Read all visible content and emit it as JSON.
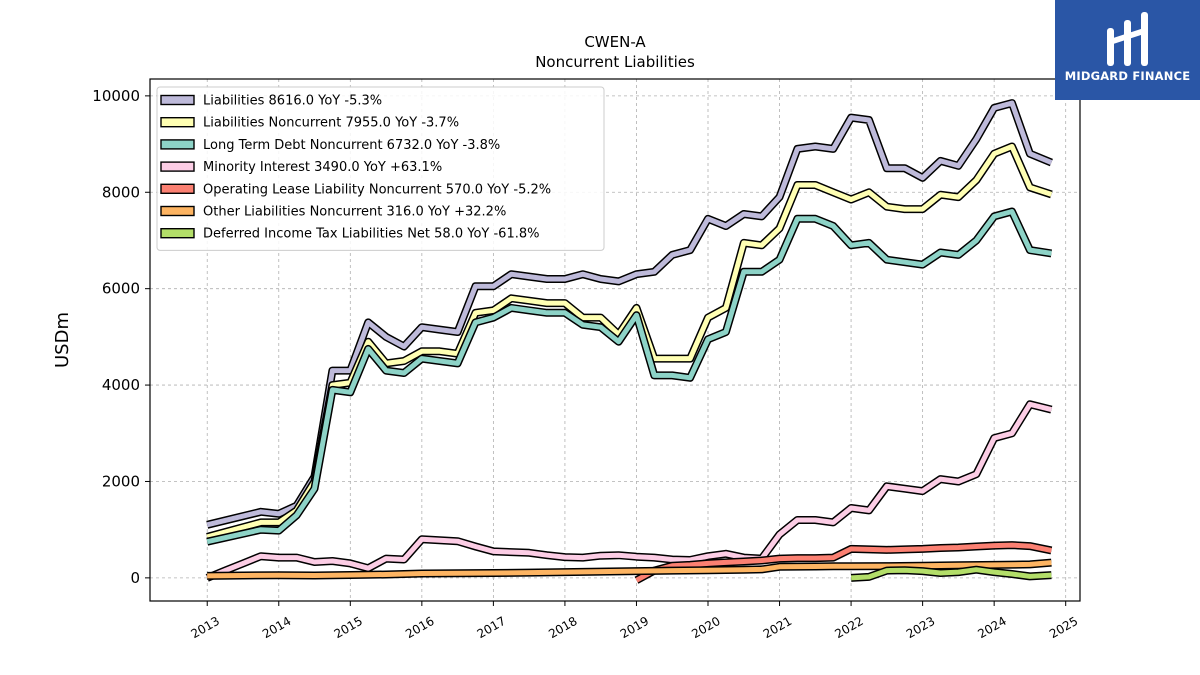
{
  "chart_data": {
    "type": "line",
    "title": "CWEN-A",
    "subtitle": "Noncurrent  Liabilities",
    "ylabel": "USDm",
    "xlim": [
      2012.2,
      2025.2
    ],
    "ylim": [
      -480,
      10350
    ],
    "yticks": [
      0,
      2000,
      4000,
      6000,
      8000,
      10000
    ],
    "xticks": [
      2013,
      2014,
      2015,
      2016,
      2017,
      2018,
      2019,
      2020,
      2021,
      2022,
      2023,
      2024,
      2025
    ],
    "grid": true,
    "legend_position": "upper-left",
    "series": [
      {
        "name": "Liabilities",
        "legend": "Liabilities  8616.0 YoY -5.3%",
        "color": "#bebada",
        "points": [
          [
            2013.0,
            1100
          ],
          [
            2013.75,
            1370
          ],
          [
            2014.0,
            1330
          ],
          [
            2014.25,
            1500
          ],
          [
            2014.5,
            2100
          ],
          [
            2014.75,
            4300
          ],
          [
            2015.0,
            4300
          ],
          [
            2015.25,
            5300
          ],
          [
            2015.5,
            5000
          ],
          [
            2015.75,
            4800
          ],
          [
            2016.0,
            5200
          ],
          [
            2016.25,
            5150
          ],
          [
            2016.5,
            5100
          ],
          [
            2016.75,
            6050
          ],
          [
            2017.0,
            6050
          ],
          [
            2017.25,
            6300
          ],
          [
            2017.5,
            6250
          ],
          [
            2017.75,
            6200
          ],
          [
            2018.0,
            6200
          ],
          [
            2018.25,
            6300
          ],
          [
            2018.5,
            6200
          ],
          [
            2018.75,
            6150
          ],
          [
            2019.0,
            6300
          ],
          [
            2019.25,
            6350
          ],
          [
            2019.5,
            6700
          ],
          [
            2019.75,
            6800
          ],
          [
            2020.0,
            7450
          ],
          [
            2020.25,
            7300
          ],
          [
            2020.5,
            7550
          ],
          [
            2020.75,
            7500
          ],
          [
            2021.0,
            7900
          ],
          [
            2021.25,
            8900
          ],
          [
            2021.5,
            8950
          ],
          [
            2021.75,
            8900
          ],
          [
            2022.0,
            9550
          ],
          [
            2022.25,
            9500
          ],
          [
            2022.5,
            8500
          ],
          [
            2022.75,
            8500
          ],
          [
            2023.0,
            8300
          ],
          [
            2023.25,
            8650
          ],
          [
            2023.5,
            8550
          ],
          [
            2023.75,
            9100
          ],
          [
            2024.0,
            9750
          ],
          [
            2024.25,
            9850
          ],
          [
            2024.5,
            8800
          ],
          [
            2024.8,
            8616
          ]
        ]
      },
      {
        "name": "Liabilities Noncurrent",
        "legend": "Liabilities Noncurrent  7955.0 YoY -3.7%",
        "color": "#ffffb3",
        "points": [
          [
            2013.0,
            850
          ],
          [
            2013.75,
            1150
          ],
          [
            2014.0,
            1150
          ],
          [
            2014.25,
            1400
          ],
          [
            2014.5,
            2000
          ],
          [
            2014.75,
            4000
          ],
          [
            2015.0,
            4050
          ],
          [
            2015.25,
            4900
          ],
          [
            2015.5,
            4450
          ],
          [
            2015.75,
            4500
          ],
          [
            2016.0,
            4700
          ],
          [
            2016.25,
            4700
          ],
          [
            2016.5,
            4650
          ],
          [
            2016.75,
            5500
          ],
          [
            2017.0,
            5550
          ],
          [
            2017.25,
            5800
          ],
          [
            2017.5,
            5750
          ],
          [
            2017.75,
            5700
          ],
          [
            2018.0,
            5700
          ],
          [
            2018.25,
            5400
          ],
          [
            2018.5,
            5400
          ],
          [
            2018.75,
            5050
          ],
          [
            2019.0,
            5600
          ],
          [
            2019.25,
            4550
          ],
          [
            2019.5,
            4550
          ],
          [
            2019.75,
            4550
          ],
          [
            2020.0,
            5400
          ],
          [
            2020.25,
            5600
          ],
          [
            2020.5,
            6950
          ],
          [
            2020.75,
            6900
          ],
          [
            2021.0,
            7250
          ],
          [
            2021.25,
            8150
          ],
          [
            2021.5,
            8150
          ],
          [
            2021.75,
            8000
          ],
          [
            2022.0,
            7850
          ],
          [
            2022.25,
            8000
          ],
          [
            2022.5,
            7700
          ],
          [
            2022.75,
            7650
          ],
          [
            2023.0,
            7650
          ],
          [
            2023.25,
            7950
          ],
          [
            2023.5,
            7900
          ],
          [
            2023.75,
            8250
          ],
          [
            2024.0,
            8800
          ],
          [
            2024.25,
            8950
          ],
          [
            2024.5,
            8100
          ],
          [
            2024.8,
            7955
          ]
        ]
      },
      {
        "name": "Long Term Debt Noncurrent",
        "legend": "Long Term Debt Noncurrent  6732.0 YoY -3.8%",
        "color": "#8dd3c7",
        "points": [
          [
            2013.0,
            750
          ],
          [
            2013.75,
            1000
          ],
          [
            2014.0,
            980
          ],
          [
            2014.25,
            1300
          ],
          [
            2014.5,
            1850
          ],
          [
            2014.75,
            3900
          ],
          [
            2015.0,
            3850
          ],
          [
            2015.25,
            4750
          ],
          [
            2015.5,
            4300
          ],
          [
            2015.75,
            4250
          ],
          [
            2016.0,
            4550
          ],
          [
            2016.25,
            4500
          ],
          [
            2016.5,
            4450
          ],
          [
            2016.75,
            5300
          ],
          [
            2017.0,
            5400
          ],
          [
            2017.25,
            5600
          ],
          [
            2017.5,
            5550
          ],
          [
            2017.75,
            5500
          ],
          [
            2018.0,
            5500
          ],
          [
            2018.25,
            5250
          ],
          [
            2018.5,
            5200
          ],
          [
            2018.75,
            4900
          ],
          [
            2019.0,
            5450
          ],
          [
            2019.25,
            4200
          ],
          [
            2019.5,
            4200
          ],
          [
            2019.75,
            4150
          ],
          [
            2020.0,
            4950
          ],
          [
            2020.25,
            5100
          ],
          [
            2020.5,
            6350
          ],
          [
            2020.75,
            6350
          ],
          [
            2021.0,
            6600
          ],
          [
            2021.25,
            7450
          ],
          [
            2021.5,
            7450
          ],
          [
            2021.75,
            7300
          ],
          [
            2022.0,
            6900
          ],
          [
            2022.25,
            6950
          ],
          [
            2022.5,
            6600
          ],
          [
            2022.75,
            6550
          ],
          [
            2023.0,
            6500
          ],
          [
            2023.25,
            6750
          ],
          [
            2023.5,
            6700
          ],
          [
            2023.75,
            7000
          ],
          [
            2024.0,
            7500
          ],
          [
            2024.25,
            7600
          ],
          [
            2024.5,
            6800
          ],
          [
            2024.8,
            6732
          ]
        ]
      },
      {
        "name": "Minority Interest",
        "legend": "Minority Interest  3490.0 YoY +63.1%",
        "color": "#fccde5",
        "points": [
          [
            2013.0,
            0
          ],
          [
            2013.25,
            150
          ],
          [
            2013.5,
            300
          ],
          [
            2013.75,
            450
          ],
          [
            2014.0,
            420
          ],
          [
            2014.25,
            420
          ],
          [
            2014.5,
            330
          ],
          [
            2014.75,
            350
          ],
          [
            2015.0,
            300
          ],
          [
            2015.25,
            200
          ],
          [
            2015.5,
            400
          ],
          [
            2015.75,
            380
          ],
          [
            2016.0,
            800
          ],
          [
            2016.25,
            780
          ],
          [
            2016.5,
            760
          ],
          [
            2016.75,
            650
          ],
          [
            2017.0,
            550
          ],
          [
            2017.5,
            520
          ],
          [
            2017.75,
            470
          ],
          [
            2018.0,
            430
          ],
          [
            2018.25,
            420
          ],
          [
            2018.5,
            460
          ],
          [
            2018.75,
            470
          ],
          [
            2019.0,
            440
          ],
          [
            2019.25,
            420
          ],
          [
            2019.5,
            380
          ],
          [
            2019.75,
            370
          ],
          [
            2020.0,
            450
          ],
          [
            2020.25,
            500
          ],
          [
            2020.5,
            420
          ],
          [
            2020.75,
            400
          ],
          [
            2021.0,
            900
          ],
          [
            2021.25,
            1200
          ],
          [
            2021.5,
            1200
          ],
          [
            2021.75,
            1150
          ],
          [
            2022.0,
            1450
          ],
          [
            2022.25,
            1400
          ],
          [
            2022.5,
            1900
          ],
          [
            2022.75,
            1850
          ],
          [
            2023.0,
            1800
          ],
          [
            2023.25,
            2050
          ],
          [
            2023.5,
            2000
          ],
          [
            2023.75,
            2150
          ],
          [
            2024.0,
            2900
          ],
          [
            2024.25,
            3000
          ],
          [
            2024.5,
            3600
          ],
          [
            2024.8,
            3490
          ]
        ]
      },
      {
        "name": "Operating Lease Liability Noncurrent",
        "legend": "Operating Lease Liability Noncurrent  570.0 YoY -5.2%",
        "color": "#fb8072",
        "points": [
          [
            2019.0,
            -50
          ],
          [
            2019.25,
            150
          ],
          [
            2019.5,
            250
          ],
          [
            2019.75,
            270
          ],
          [
            2020.0,
            300
          ],
          [
            2020.25,
            320
          ],
          [
            2020.5,
            340
          ],
          [
            2020.75,
            360
          ],
          [
            2021.0,
            400
          ],
          [
            2021.25,
            410
          ],
          [
            2021.5,
            410
          ],
          [
            2021.75,
            420
          ],
          [
            2022.0,
            600
          ],
          [
            2022.25,
            590
          ],
          [
            2022.5,
            580
          ],
          [
            2022.75,
            590
          ],
          [
            2023.0,
            600
          ],
          [
            2023.25,
            620
          ],
          [
            2023.5,
            630
          ],
          [
            2023.75,
            650
          ],
          [
            2024.0,
            670
          ],
          [
            2024.25,
            680
          ],
          [
            2024.5,
            660
          ],
          [
            2024.8,
            570
          ]
        ]
      },
      {
        "name": "Other Liabilities Noncurrent",
        "legend": "Other Liabilities Noncurrent  316.0 YoY +32.2%",
        "color": "#fdb462",
        "points": [
          [
            2013.0,
            40
          ],
          [
            2013.5,
            50
          ],
          [
            2014.0,
            55
          ],
          [
            2014.5,
            50
          ],
          [
            2015.0,
            60
          ],
          [
            2015.5,
            70
          ],
          [
            2016.0,
            90
          ],
          [
            2016.5,
            95
          ],
          [
            2017.0,
            100
          ],
          [
            2017.5,
            110
          ],
          [
            2018.0,
            120
          ],
          [
            2018.5,
            130
          ],
          [
            2019.0,
            140
          ],
          [
            2019.5,
            150
          ],
          [
            2020.0,
            160
          ],
          [
            2020.5,
            170
          ],
          [
            2020.75,
            175
          ],
          [
            2021.0,
            230
          ],
          [
            2021.5,
            235
          ],
          [
            2021.75,
            240
          ],
          [
            2022.0,
            240
          ],
          [
            2022.5,
            245
          ],
          [
            2023.0,
            250
          ],
          [
            2023.5,
            260
          ],
          [
            2024.0,
            270
          ],
          [
            2024.5,
            280
          ],
          [
            2024.8,
            316
          ]
        ]
      },
      {
        "name": "Deferred Income Tax Liabilities Net",
        "legend": "Deferred Income Tax Liabilities Net  58.0 YoY -61.8%",
        "color": "#b3de69",
        "points": [
          [
            2022.0,
            0
          ],
          [
            2022.25,
            20
          ],
          [
            2022.5,
            150
          ],
          [
            2022.75,
            160
          ],
          [
            2023.0,
            140
          ],
          [
            2023.25,
            100
          ],
          [
            2023.5,
            120
          ],
          [
            2023.75,
            170
          ],
          [
            2024.0,
            120
          ],
          [
            2024.25,
            80
          ],
          [
            2024.5,
            30
          ],
          [
            2024.8,
            58
          ]
        ]
      }
    ]
  },
  "logo": {
    "text": "MIDGARD FINANCE",
    "color": "#2a56a6"
  }
}
